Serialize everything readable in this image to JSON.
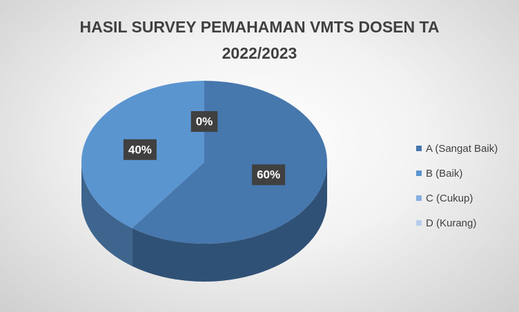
{
  "chart_data": {
    "type": "pie",
    "title": "HASIL SURVEY PEMAHAMAN VMTS DOSEN TA 2022/2023",
    "categories": [
      "A (Sangat Baik)",
      "B (Baik)",
      "C (Cukup)",
      "D (Kurang)"
    ],
    "values": [
      60,
      40,
      0,
      0
    ],
    "value_labels": [
      "60%",
      "40%",
      "0%",
      null
    ],
    "colors": [
      "#4677ad",
      "#5b95d0",
      "#86aee0",
      "#b7cfec"
    ],
    "legend": "right"
  }
}
